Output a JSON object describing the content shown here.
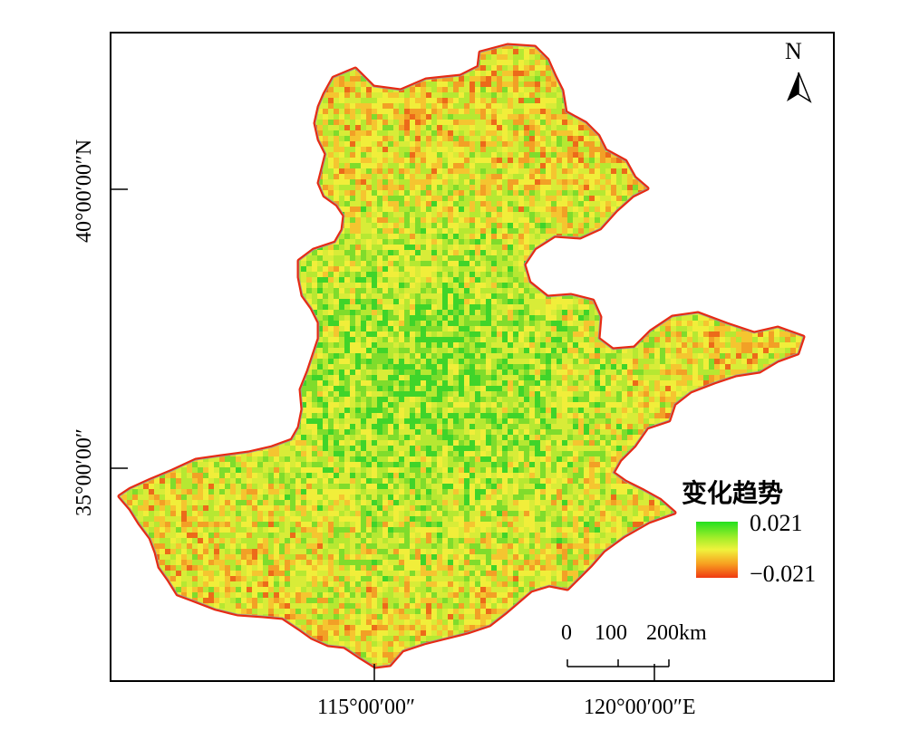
{
  "map": {
    "north_label": "N",
    "lat_labels": [
      "40°00′00″N",
      "35°00′00″"
    ],
    "lon_labels": [
      "115°00′00″",
      "120°00′00″E"
    ],
    "legend": {
      "title": "变化趋势",
      "max_label": "0.021",
      "min_label": "−0.021",
      "colors": [
        "#22e01e",
        "#a8ee2a",
        "#f0f23c",
        "#f7a020",
        "#f03a12"
      ]
    },
    "scale_bar": {
      "labels": [
        "0",
        "100",
        "200km"
      ]
    },
    "fill_colors": [
      "#d8ec38",
      "#f1ee3a",
      "#f5c530",
      "#f2a026",
      "#ec6a1a",
      "#b6e832",
      "#7fdc2c",
      "#3fd42a"
    ]
  }
}
